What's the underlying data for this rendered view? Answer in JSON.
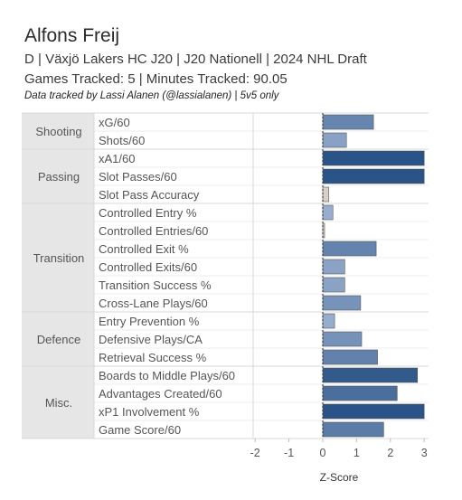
{
  "header": {
    "title": "Alfons Freij",
    "subtitle1": "D | Växjö Lakers HC J20 | J20 Nationell | 2024 NHL Draft",
    "subtitle2": "Games Tracked: 5 | Minutes Tracked: 90.05",
    "credit": "Data tracked by Lassi Alanen (@lassialanen) | 5v5 only"
  },
  "chart_data": {
    "type": "bar",
    "orientation": "horizontal",
    "xlabel": "Z-Score",
    "ylabel": "",
    "xlim": [
      -2,
      3
    ],
    "xticks": [
      "-2",
      "-1",
      "0",
      "1",
      "2",
      "3"
    ],
    "groups": [
      {
        "name": "Shooting",
        "items": [
          {
            "label": "xG/60",
            "value": 1.5
          },
          {
            "label": "Shots/60",
            "value": 0.7
          }
        ]
      },
      {
        "name": "Passing",
        "items": [
          {
            "label": "xA1/60",
            "value": 3.0
          },
          {
            "label": "Slot Passes/60",
            "value": 3.0
          },
          {
            "label": "Slot Pass Accuracy",
            "value": 0.18
          }
        ]
      },
      {
        "name": "Transition",
        "items": [
          {
            "label": "Controlled Entry %",
            "value": 0.3
          },
          {
            "label": "Controlled Entries/60",
            "value": 0.0
          },
          {
            "label": "Controlled Exit %",
            "value": 1.58
          },
          {
            "label": "Controlled Exits/60",
            "value": 0.65
          },
          {
            "label": "Transition Success %",
            "value": 0.65
          },
          {
            "label": "Cross-Lane Plays/60",
            "value": 1.12
          }
        ]
      },
      {
        "name": "Defence",
        "items": [
          {
            "label": "Entry Prevention %",
            "value": 0.35
          },
          {
            "label": "Defensive Plays/CA",
            "value": 1.15
          },
          {
            "label": "Retrieval Success %",
            "value": 1.62
          }
        ]
      },
      {
        "name": "Misc.",
        "items": [
          {
            "label": "Boards to Middle Plays/60",
            "value": 2.8
          },
          {
            "label": "Advantages Created/60",
            "value": 2.2
          },
          {
            "label": "xP1 Involvement %",
            "value": 3.0
          },
          {
            "label": "Game Score/60",
            "value": 1.8
          }
        ]
      }
    ],
    "colors": {
      "low": "#d9cfc9",
      "mid": "#9ab0d0",
      "high": "#2a5487",
      "group_bg": "#e6e6e6",
      "grid": "#d8d8d8"
    }
  }
}
